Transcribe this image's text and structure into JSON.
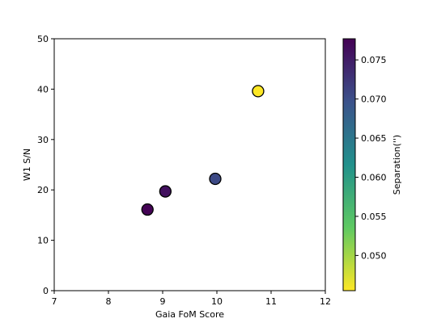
{
  "chart_data": {
    "type": "scatter",
    "title": "",
    "xlabel": "Gaia FoM Score",
    "ylabel": "W1 S/N",
    "xlim": [
      7,
      12
    ],
    "ylim": [
      0,
      50
    ],
    "xticks": [
      "7",
      "8",
      "9",
      "10",
      "11",
      "12"
    ],
    "yticks": [
      "0",
      "10",
      "20",
      "30",
      "40",
      "50"
    ],
    "grid": false,
    "points": [
      {
        "x": 8.72,
        "y": 16.1,
        "c": 0.0775
      },
      {
        "x": 9.05,
        "y": 19.7,
        "c": 0.0762
      },
      {
        "x": 9.97,
        "y": 22.2,
        "c": 0.0705
      },
      {
        "x": 10.76,
        "y": 39.6,
        "c": 0.0455
      }
    ],
    "colorbar": {
      "label": "Separation('')",
      "min": 0.0455,
      "max": 0.0777,
      "colormap": "viridis",
      "ticks": [
        "0.050",
        "0.055",
        "0.060",
        "0.065",
        "0.070",
        "0.075"
      ],
      "tick_values": [
        0.05,
        0.055,
        0.06,
        0.065,
        0.07,
        0.075
      ]
    },
    "marker_edge_color": "#000000"
  }
}
